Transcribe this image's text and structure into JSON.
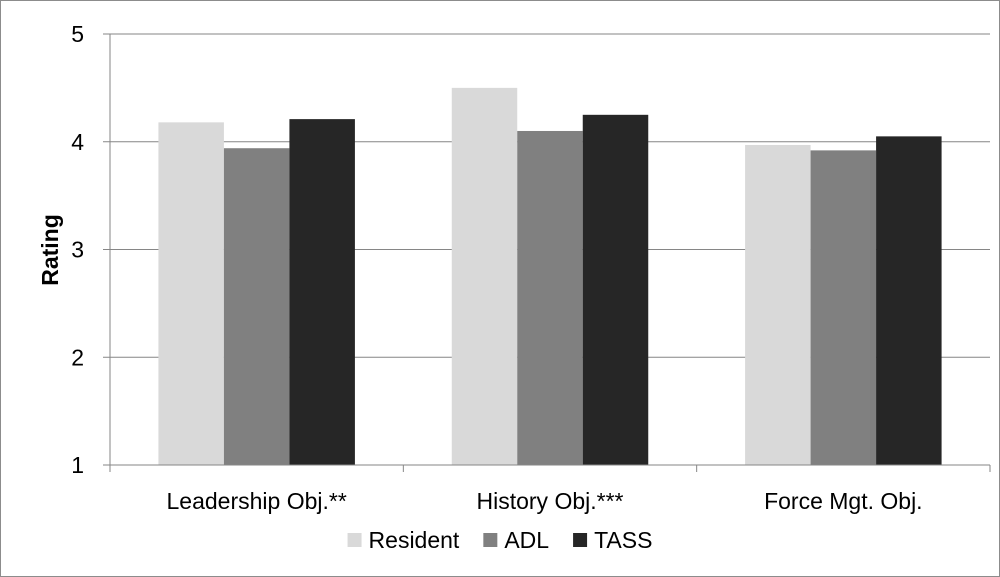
{
  "chart_data": {
    "type": "bar",
    "title": "",
    "xlabel": "",
    "ylabel": "Rating",
    "ylim": [
      1,
      5
    ],
    "yticks": [
      "1",
      "2",
      "3",
      "4",
      "5"
    ],
    "grid": true,
    "legend_position": "bottom",
    "categories": [
      "Leadership Obj.**",
      "History Obj.***",
      "Force Mgt. Obj."
    ],
    "series": [
      {
        "name": "Resident",
        "color": "#d9d9d9",
        "values": [
          4.18,
          4.5,
          3.97
        ]
      },
      {
        "name": "ADL",
        "color": "#808080",
        "values": [
          3.94,
          4.1,
          3.92
        ]
      },
      {
        "name": "TASS",
        "color": "#262626",
        "values": [
          4.21,
          4.25,
          4.05
        ]
      }
    ]
  }
}
